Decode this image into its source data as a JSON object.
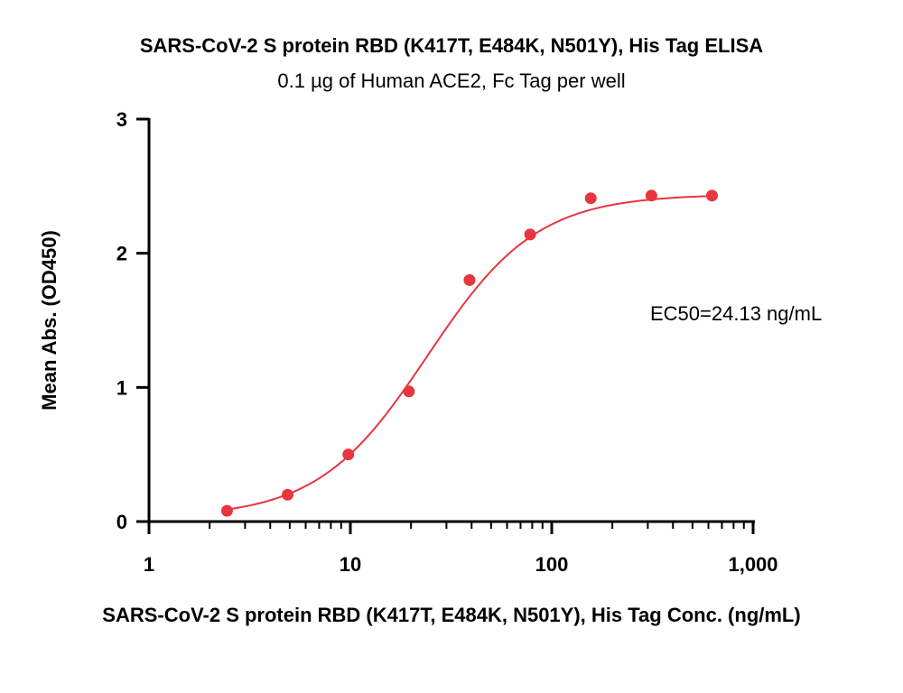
{
  "chart_data": {
    "type": "scatter",
    "title": "SARS-CoV-2 S protein RBD (K417T, E484K, N501Y), His Tag ELISA",
    "subtitle": "0.1 µg of Human ACE2, Fc Tag per well",
    "xlabel": "SARS-CoV-2 S protein RBD (K417T, E484K, N501Y), His Tag Conc. (ng/mL)",
    "ylabel": "Mean Abs. (OD450)",
    "xscale": "log",
    "xlim": [
      1,
      1000
    ],
    "ylim": [
      0,
      3
    ],
    "xticks": [
      1,
      10,
      100,
      1000
    ],
    "xtick_labels": [
      "1",
      "10",
      "100",
      "1,000"
    ],
    "yticks": [
      0,
      1,
      2,
      3
    ],
    "ytick_labels": [
      "0",
      "1",
      "2",
      "3"
    ],
    "grid": false,
    "series": [
      {
        "x": [
          2.44,
          4.88,
          9.77,
          19.53,
          39.06,
          78.13,
          156.25,
          312.5,
          625
        ],
        "y": [
          0.08,
          0.2,
          0.5,
          0.97,
          1.8,
          2.14,
          2.41,
          2.43,
          2.43
        ],
        "color": "#e8353f",
        "fit": "4PL"
      }
    ],
    "fit_params": {
      "bottom": 0.03,
      "top": 2.44,
      "ec50": 24.13,
      "hill": 1.6
    },
    "annotation": "EC50=24.13 ng/mL"
  }
}
